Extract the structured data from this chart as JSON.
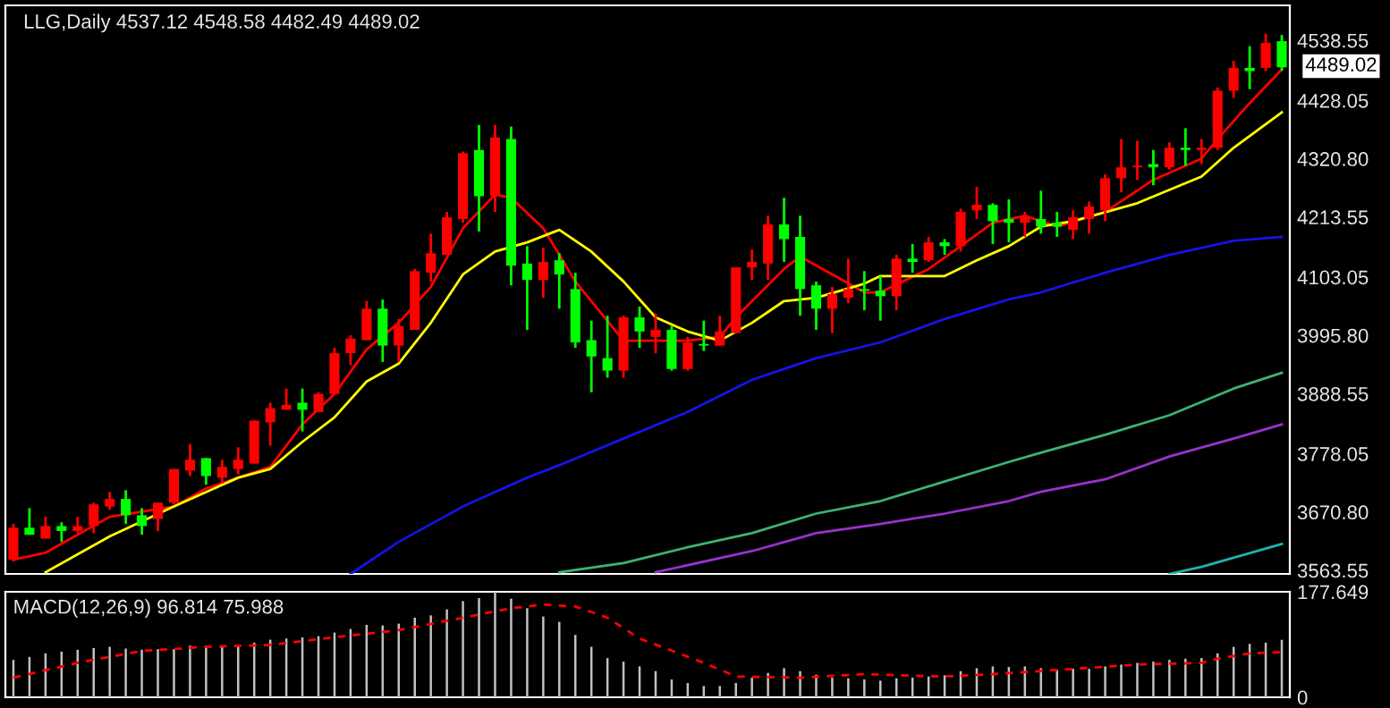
{
  "chart_data": [
    {
      "type": "candlestick",
      "title": "LLG,Daily 4537.12 4548.58 4482.49 4489.02",
      "tick_labels": "y",
      "categories": [
        null,
        null,
        null,
        null,
        null,
        null,
        null,
        null,
        null,
        null,
        null,
        null,
        null,
        null,
        null,
        null,
        null,
        null,
        null,
        null,
        null,
        null,
        null,
        null,
        null,
        null,
        null,
        null,
        null,
        null,
        null,
        null,
        null,
        null,
        null,
        null,
        null,
        null,
        null,
        null,
        null,
        null,
        null,
        null,
        null,
        null,
        null,
        null,
        null,
        null,
        null,
        null,
        null,
        null,
        null,
        null,
        null,
        null,
        null,
        null,
        null,
        null,
        null,
        null,
        null,
        null,
        null,
        null,
        null,
        null,
        null,
        null,
        null,
        null,
        null,
        null,
        null,
        null,
        null,
        null
      ],
      "ohlc": [
        [
          3583,
          3649,
          3580,
          3642
        ],
        [
          3642,
          3678,
          3629,
          3629
        ],
        [
          3622,
          3662,
          3622,
          3645
        ],
        [
          3645,
          3652,
          3616,
          3636
        ],
        [
          3636,
          3662,
          3632,
          3645
        ],
        [
          3645,
          3688,
          3632,
          3685
        ],
        [
          3681,
          3708,
          3675,
          3695
        ],
        [
          3695,
          3711,
          3649,
          3665
        ],
        [
          3665,
          3678,
          3629,
          3645
        ],
        [
          3658,
          3688,
          3636,
          3688
        ],
        [
          3688,
          3750,
          3685,
          3750
        ],
        [
          3747,
          3796,
          3737,
          3767
        ],
        [
          3770,
          3770,
          3721,
          3737
        ],
        [
          3734,
          3767,
          3724,
          3754
        ],
        [
          3750,
          3790,
          3740,
          3767
        ],
        [
          3760,
          3839,
          3760,
          3839
        ],
        [
          3836,
          3872,
          3793,
          3862
        ],
        [
          3859,
          3898,
          3859,
          3868
        ],
        [
          3872,
          3898,
          3819,
          3859
        ],
        [
          3855,
          3891,
          3855,
          3888
        ],
        [
          3888,
          3973,
          3888,
          3963
        ],
        [
          3963,
          3996,
          3941,
          3990
        ],
        [
          3987,
          4059,
          3987,
          4045
        ],
        [
          4045,
          4062,
          3947,
          3977
        ],
        [
          3977,
          4026,
          3947,
          4013
        ],
        [
          4006,
          4118,
          4006,
          4114
        ],
        [
          4111,
          4183,
          4095,
          4147
        ],
        [
          4144,
          4223,
          4144,
          4213
        ],
        [
          4210,
          4334,
          4203,
          4331
        ],
        [
          4337,
          4383,
          4187,
          4252
        ],
        [
          4252,
          4383,
          4223,
          4360
        ],
        [
          4357,
          4380,
          4088,
          4124
        ],
        [
          4128,
          4160,
          4006,
          4098
        ],
        [
          4098,
          4157,
          4065,
          4131
        ],
        [
          4134,
          4147,
          4045,
          4108
        ],
        [
          4081,
          4111,
          3973,
          3983
        ],
        [
          3987,
          4023,
          3891,
          3957
        ],
        [
          3954,
          4032,
          3918,
          3931
        ],
        [
          3931,
          4032,
          3918,
          4029
        ],
        [
          4029,
          4049,
          3973,
          4003
        ],
        [
          3993,
          4036,
          3963,
          4006
        ],
        [
          4006,
          4013,
          3931,
          3934
        ],
        [
          3934,
          3993,
          3931,
          3983
        ],
        [
          3980,
          4023,
          3967,
          3977
        ],
        [
          3977,
          4032,
          3977,
          4003
        ],
        [
          4000,
          4121,
          4000,
          4121
        ],
        [
          4121,
          4154,
          4098,
          4131
        ],
        [
          4128,
          4216,
          4098,
          4200
        ],
        [
          4200,
          4249,
          4131,
          4173
        ],
        [
          4177,
          4216,
          4032,
          4081
        ],
        [
          4088,
          4095,
          4006,
          4045
        ],
        [
          4045,
          4085,
          4000,
          4072
        ],
        [
          4065,
          4137,
          4055,
          4081
        ],
        [
          4081,
          4114,
          4042,
          4078
        ],
        [
          4078,
          4105,
          4023,
          4068
        ],
        [
          4068,
          4144,
          4042,
          4137
        ],
        [
          4137,
          4164,
          4111,
          4131
        ],
        [
          4134,
          4177,
          4131,
          4167
        ],
        [
          4167,
          4173,
          4144,
          4160
        ],
        [
          4160,
          4229,
          4150,
          4223
        ],
        [
          4226,
          4269,
          4210,
          4236
        ],
        [
          4236,
          4239,
          4164,
          4206
        ],
        [
          4210,
          4246,
          4167,
          4203
        ],
        [
          4203,
          4223,
          4177,
          4213
        ],
        [
          4210,
          4262,
          4183,
          4196
        ],
        [
          4203,
          4223,
          4177,
          4196
        ],
        [
          4190,
          4226,
          4173,
          4213
        ],
        [
          4210,
          4242,
          4183,
          4233
        ],
        [
          4226,
          4292,
          4206,
          4285
        ],
        [
          4285,
          4357,
          4259,
          4305
        ],
        [
          4305,
          4354,
          4282,
          4308
        ],
        [
          4311,
          4337,
          4272,
          4305
        ],
        [
          4305,
          4351,
          4301,
          4341
        ],
        [
          4341,
          4377,
          4308,
          4337
        ],
        [
          4337,
          4357,
          4311,
          4341
        ],
        [
          4341,
          4452,
          4337,
          4446
        ],
        [
          4446,
          4501,
          4433,
          4488
        ],
        [
          4488,
          4528,
          4449,
          4482
        ],
        [
          4488,
          4551,
          4482,
          4534
        ],
        [
          4537.12,
          4548.58,
          4482.49,
          4489.02
        ]
      ],
      "colors": [
        "#ff0000",
        "#00ff00",
        "#ff0000",
        "#00ff00",
        "#ff0000",
        "#ff0000",
        "#ff0000",
        "#00ff00",
        "#00ff00",
        "#ff0000",
        "#ff0000",
        "#ff0000",
        "#00ff00",
        "#ff0000",
        "#ff0000",
        "#ff0000",
        "#ff0000",
        "#ff0000",
        "#00ff00",
        "#ff0000",
        "#ff0000",
        "#ff0000",
        "#ff0000",
        "#00ff00",
        "#ff0000",
        "#ff0000",
        "#ff0000",
        "#ff0000",
        "#ff0000",
        "#00ff00",
        "#ff0000",
        "#00ff00",
        "#00ff00",
        "#ff0000",
        "#00ff00",
        "#00ff00",
        "#00ff00",
        "#00ff00",
        "#ff0000",
        "#00ff00",
        "#ff0000",
        "#00ff00",
        "#ff0000",
        "#00ff00",
        "#ff0000",
        "#ff0000",
        "#ff0000",
        "#ff0000",
        "#00ff00",
        "#00ff00",
        "#00ff00",
        "#ff0000",
        "#ff0000",
        "#00ff00",
        "#00ff00",
        "#ff0000",
        "#00ff00",
        "#ff0000",
        "#00ff00",
        "#ff0000",
        "#ff0000",
        "#00ff00",
        "#00ff00",
        "#ff0000",
        "#00ff00",
        "#00ff00",
        "#ff0000",
        "#ff0000",
        "#ff0000",
        "#ff0000",
        "#ff0000",
        "#00ff00",
        "#ff0000",
        "#00ff00",
        "#ff0000",
        "#ff0000",
        "#ff0000",
        "#00ff00",
        "#ff0000",
        "#00ff00"
      ],
      "series": [
        {
          "type": "line",
          "color": "#ff0000",
          "values": [
            3583,
            null,
            3596,
            null,
            null,
            null,
            3662,
            null,
            null,
            null,
            3681,
            null,
            3714,
            null,
            null,
            null,
            3754,
            null,
            3832,
            null,
            3888,
            null,
            3970,
            null,
            4019,
            null,
            4085,
            null,
            4193,
            null,
            4255,
            4249,
            null,
            4193,
            null,
            4095,
            null,
            null,
            3986,
            null,
            null,
            null,
            3986,
            null,
            3993,
            4029,
            null,
            null,
            4118,
            4141,
            null,
            4108,
            null,
            4075,
            4075,
            null,
            null,
            4118,
            null,
            4160,
            null,
            4203,
            null,
            4216,
            null,
            4196,
            null,
            null,
            4223,
            null,
            null,
            4282,
            null,
            null,
            4321,
            4357,
            null,
            4423,
            null,
            4485
          ]
        },
        {
          "type": "line",
          "color": "#ffff00",
          "values": [
            null,
            null,
            3560,
            null,
            null,
            null,
            3626,
            null,
            null,
            null,
            3681,
            null,
            null,
            null,
            3734,
            null,
            3750,
            null,
            3800,
            null,
            3845,
            null,
            3911,
            null,
            3944,
            null,
            4019,
            null,
            4108,
            null,
            4150,
            null,
            4167,
            null,
            4190,
            null,
            4150,
            null,
            4095,
            null,
            4029,
            null,
            4003,
            null,
            3986,
            null,
            4019,
            null,
            4059,
            null,
            4065,
            null,
            null,
            4091,
            4105,
            null,
            null,
            null,
            4105,
            null,
            4134,
            null,
            4160,
            null,
            4196,
            null,
            4206,
            null,
            null,
            null,
            4239,
            null,
            null,
            null,
            4288,
            null,
            4341,
            null,
            null,
            4406
          ]
        },
        {
          "type": "line",
          "color": "#1414e6",
          "values": [
            null,
            null,
            null,
            null,
            null,
            null,
            null,
            null,
            null,
            null,
            null,
            null,
            null,
            null,
            null,
            null,
            null,
            null,
            null,
            null,
            null,
            3557,
            null,
            null,
            3616,
            null,
            null,
            null,
            3681,
            null,
            null,
            null,
            3734,
            null,
            3757,
            null,
            null,
            null,
            3806,
            null,
            null,
            null,
            3855,
            null,
            null,
            null,
            3914,
            null,
            null,
            null,
            3954,
            null,
            null,
            null,
            3983,
            null,
            null,
            null,
            4026,
            null,
            null,
            null,
            4062,
            null,
            4075,
            null,
            null,
            null,
            4111,
            null,
            null,
            null,
            4144,
            null,
            null,
            null,
            4170,
            null,
            null,
            4177
          ]
        },
        {
          "type": "line",
          "color": "#3cb371",
          "values": [
            null,
            null,
            null,
            null,
            null,
            null,
            null,
            null,
            null,
            null,
            null,
            null,
            null,
            null,
            null,
            null,
            null,
            null,
            null,
            null,
            null,
            null,
            null,
            null,
            null,
            null,
            null,
            null,
            null,
            null,
            null,
            null,
            null,
            null,
            3560,
            null,
            null,
            null,
            3577,
            null,
            null,
            null,
            3606,
            null,
            null,
            null,
            3632,
            null,
            null,
            null,
            3668,
            null,
            null,
            null,
            3691,
            null,
            null,
            null,
            3727,
            null,
            null,
            null,
            3763,
            null,
            3780,
            null,
            null,
            null,
            3813,
            null,
            null,
            null,
            3849,
            null,
            null,
            null,
            3898,
            null,
            null,
            3927
          ]
        },
        {
          "type": "line",
          "color": "#9932cc",
          "values": [
            null,
            null,
            null,
            null,
            null,
            null,
            null,
            null,
            null,
            null,
            null,
            null,
            null,
            null,
            null,
            null,
            null,
            null,
            null,
            null,
            null,
            null,
            null,
            null,
            null,
            null,
            null,
            null,
            null,
            null,
            null,
            null,
            null,
            null,
            null,
            null,
            null,
            null,
            null,
            null,
            3560,
            null,
            null,
            null,
            null,
            null,
            3599,
            null,
            null,
            null,
            3632,
            null,
            null,
            null,
            3649,
            null,
            null,
            null,
            3668,
            null,
            null,
            null,
            3691,
            null,
            3708,
            null,
            null,
            null,
            3731,
            null,
            null,
            null,
            3773,
            null,
            null,
            null,
            3806,
            null,
            null,
            3832
          ]
        },
        {
          "type": "line",
          "color": "#20b2aa",
          "values": [
            null,
            null,
            null,
            null,
            null,
            null,
            null,
            null,
            null,
            null,
            null,
            null,
            null,
            null,
            null,
            null,
            null,
            null,
            null,
            null,
            null,
            null,
            null,
            null,
            null,
            null,
            null,
            null,
            null,
            null,
            null,
            null,
            null,
            null,
            null,
            null,
            null,
            null,
            null,
            null,
            null,
            null,
            null,
            null,
            null,
            null,
            null,
            null,
            null,
            null,
            null,
            null,
            null,
            null,
            null,
            null,
            null,
            null,
            null,
            null,
            null,
            null,
            null,
            null,
            null,
            null,
            null,
            null,
            null,
            null,
            null,
            null,
            3557,
            null,
            3570,
            null,
            null,
            null,
            null,
            3612
          ]
        }
      ],
      "ylim": [
        3557,
        4603
      ],
      "yticks": [
        {
          "value": 3563.55,
          "label": "3563.55"
        },
        {
          "value": 3670.8,
          "label": "3670.80"
        },
        {
          "value": 3778.05,
          "label": "3778.05"
        },
        {
          "value": 3888.55,
          "label": "3888.55"
        },
        {
          "value": 3995.8,
          "label": "3995.80"
        },
        {
          "value": 4103.05,
          "label": "4103.05"
        },
        {
          "value": 4213.55,
          "label": "4213.55"
        },
        {
          "value": 4320.8,
          "label": "4320.80"
        },
        {
          "value": 4428.05,
          "label": "4428.05"
        },
        {
          "value": 4538.55,
          "label": "4538.55"
        }
      ],
      "annotations": [
        "4489.02"
      ]
    },
    {
      "type": "bar",
      "title": "MACD(12,26,9) 96.814 75.988",
      "tick_labels": "y",
      "categories": [
        null,
        null,
        null,
        null,
        null,
        null,
        null,
        null,
        null,
        null,
        null,
        null,
        null,
        null,
        null,
        null,
        null,
        null,
        null,
        null,
        null,
        null,
        null,
        null,
        null,
        null,
        null,
        null,
        null,
        null,
        null,
        null,
        null,
        null,
        null,
        null,
        null,
        null,
        null,
        null,
        null,
        null,
        null,
        null,
        null,
        null,
        null,
        null,
        null,
        null,
        null,
        null,
        null,
        null,
        null,
        null,
        null,
        null,
        null,
        null,
        null,
        null,
        null,
        null,
        null,
        null,
        null,
        null,
        null,
        null,
        null,
        null,
        null,
        null,
        null,
        null,
        null,
        null,
        null,
        null
      ],
      "series": [
        {
          "type": "bar",
          "color": "#c0c0c0",
          "values": [
            63,
            68,
            74,
            77,
            80,
            83,
            85,
            82,
            80,
            81,
            81,
            87,
            87,
            87,
            87,
            92,
            97,
            99,
            101,
            103,
            109,
            115,
            122,
            121,
            124,
            134,
            138,
            148,
            162,
            167,
            177.649,
            166,
            150,
            136,
            127,
            105,
            85,
            66,
            60,
            52,
            44,
            30,
            24,
            19,
            19,
            24,
            33,
            41,
            49,
            44,
            38,
            33,
            32,
            30,
            28,
            32,
            33,
            35,
            37,
            44,
            49,
            52,
            51,
            52,
            49,
            46,
            48,
            48,
            52,
            55,
            58,
            60,
            63,
            65,
            66,
            74,
            85,
            90,
            92,
            96.814
          ]
        },
        {
          "type": "line",
          "color": "#ff0000",
          "line_style": "dashed",
          "values": [
            33,
            null,
            null,
            null,
            58,
            null,
            null,
            null,
            78,
            null,
            null,
            null,
            85,
            null,
            null,
            null,
            88,
            null,
            null,
            null,
            101,
            null,
            null,
            null,
            113,
            null,
            null,
            null,
            134,
            null,
            null,
            150,
            null,
            156,
            null,
            153,
            null,
            134,
            null,
            99,
            null,
            null,
            null,
            58,
            null,
            35,
            null,
            null,
            null,
            33,
            null,
            null,
            null,
            39,
            null,
            null,
            null,
            null,
            35,
            null,
            null,
            39,
            null,
            null,
            null,
            46,
            null,
            null,
            null,
            null,
            55,
            null,
            null,
            null,
            58,
            65,
            null,
            74,
            null,
            75.988
          ]
        }
      ],
      "ylim": [
        0,
        177.649
      ],
      "yticks": [
        0,
        177.649
      ]
    }
  ]
}
